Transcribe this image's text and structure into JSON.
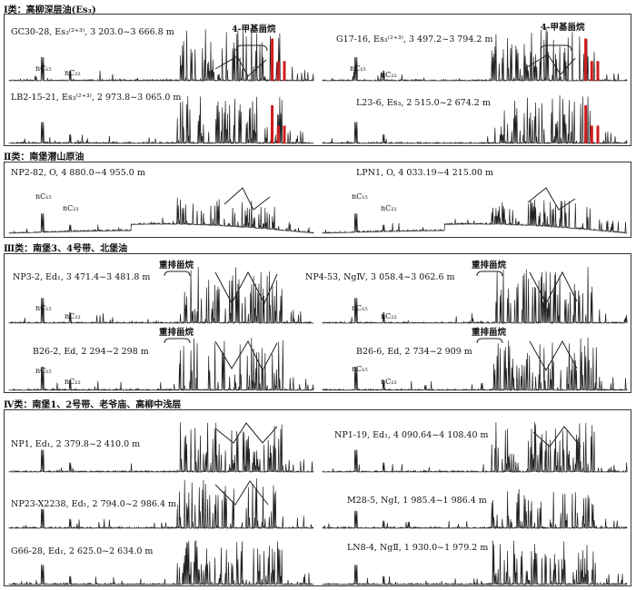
{
  "sections": [
    {
      "title": "Ⅰ类：高柳深层油(Es₃)",
      "charts": [
        {
          "sample": "GC30-28, Es₃⁽²⁺³⁾, 3 203.0~3 666.8 m",
          "nc15": "nC₁₅",
          "nc22": "nC₂₂",
          "annotation": "4-甲基甾烷"
        },
        {
          "sample": "G17-16, Es₃⁽²⁺³⁾, 3 497.2~3 794.2 m",
          "nc15": "nC₁₅",
          "nc22": "nC₂₂",
          "annotation": "4-甲基甾烷"
        },
        {
          "sample": "LB2-15-21, Es₃⁽²⁺³⁾, 2 973.8~3 065.0 m",
          "nc15": "",
          "nc22": "",
          "annotation": ""
        },
        {
          "sample": "L23-6, Es₃, 2 515.0~2 674.2 m",
          "nc15": "",
          "nc22": "",
          "annotation": ""
        }
      ]
    },
    {
      "title": "Ⅱ类：南堡潜山原油",
      "charts": [
        {
          "sample": "NP2-82, O, 4 880.0~4 955.0 m",
          "nc15": "nC₁₅",
          "nc22": "nC₂₂",
          "annotation": ""
        },
        {
          "sample": "LPN1, O, 4 033.19~4 215.00 m",
          "nc15": "nC₁₅",
          "nc22": "nC₂₂",
          "annotation": ""
        }
      ]
    },
    {
      "title": "Ⅲ类：南堡3、4号带、北堡油",
      "charts": [
        {
          "sample": "NP3-2, Ed₁, 3 471.4~3 481.8 m",
          "nc15": "nC₁₅",
          "nc22": "nC₂₂",
          "annotation": "重排甾烷"
        },
        {
          "sample": "NP4-53, NgⅣ, 3 058.4~3 062.6 m",
          "nc15": "nC₁₅",
          "nc22": "nC₂₂",
          "annotation": "重排甾烷"
        },
        {
          "sample": "B26-2, Ed, 2 294~2 298 m",
          "nc15": "nC₁₅",
          "nc22": "nC₂₂",
          "annotation": "重排甾烷"
        },
        {
          "sample": "B26-6, Ed, 2 734~2 909 m",
          "nc15": "nC₁₅",
          "nc22": "nC₂₂",
          "annotation": "重排甾烷"
        }
      ]
    },
    {
      "title": "Ⅳ类：南堡1、2号带、老爷庙、高柳中浅层",
      "charts": [
        {
          "sample": "NP1, Ed₁, 2 379.8~2 410.0 m",
          "nc15": "",
          "nc22": "",
          "annotation": ""
        },
        {
          "sample": "NP1-19, Ed₁, 4 090.64~4 108.40 m",
          "nc15": "",
          "nc22": "",
          "annotation": ""
        },
        {
          "sample": "NP23-X2238, Ed₁, 2 794.0~2 986.4 m",
          "nc15": "",
          "nc22": "",
          "annotation": ""
        },
        {
          "sample": "M28-5, NgⅠ, 1 985.4~1 986.4 m",
          "nc15": "",
          "nc22": "",
          "annotation": ""
        },
        {
          "sample": "G66-28, Ed₁, 2 625.0~2 634.0 m",
          "nc15": "",
          "nc22": "",
          "annotation": ""
        },
        {
          "sample": "LN8-4, NgⅡ, 1 930.0~1 979.2 m",
          "nc15": "",
          "nc22": "",
          "annotation": ""
        }
      ]
    }
  ]
}
